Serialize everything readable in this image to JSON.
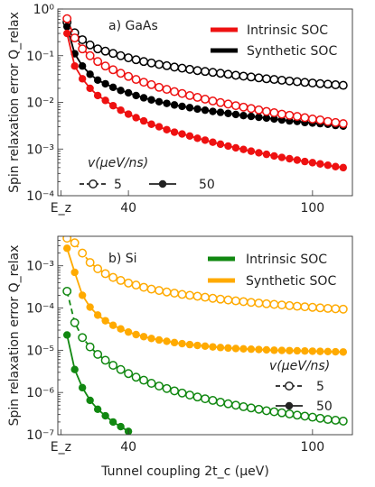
{
  "xlabel": "Tunnel coupling 2t_c (μeV)",
  "chart_data": [
    {
      "type": "line",
      "panel_label": "a) GaAs",
      "ylabel": "Spin relaxation error Q_relax",
      "y_scale": "log",
      "ylim": [
        0.0001,
        1
      ],
      "xlim": [
        17,
        113
      ],
      "x_ticks": [
        "E_z",
        "40",
        "100"
      ],
      "x_tick_values": [
        18,
        40,
        100
      ],
      "y_ticks": [
        "10⁻⁴",
        "10⁻³",
        "10⁻²",
        "10⁻¹",
        "10⁰"
      ],
      "y_tick_values": [
        0.0001,
        0.001,
        0.01,
        0.1,
        1
      ],
      "legend_series": [
        {
          "name": "Intrinsic SOC",
          "color": "#ee1111"
        },
        {
          "name": "Synthetic SOC",
          "color": "#000000"
        }
      ],
      "legend_speed": {
        "title": "v(μeV/ns)",
        "items": [
          "5",
          "50"
        ]
      },
      "x": [
        20,
        22.5,
        25,
        27.5,
        30,
        32.5,
        35,
        37.5,
        40,
        42.5,
        45,
        47.5,
        50,
        52.5,
        55,
        57.5,
        60,
        62.5,
        65,
        67.5,
        70,
        72.5,
        75,
        77.5,
        80,
        82.5,
        85,
        87.5,
        90,
        92.5,
        95,
        97.5,
        100,
        102.5,
        105,
        107.5,
        110
      ],
      "series": [
        {
          "color": "#000000",
          "speed": "5",
          "y": [
            0.52,
            0.31,
            0.22,
            0.17,
            0.14,
            0.125,
            0.112,
            0.1,
            0.09,
            0.082,
            0.075,
            0.07,
            0.065,
            0.061,
            0.057,
            0.054,
            0.051,
            0.048,
            0.046,
            0.044,
            0.042,
            0.04,
            0.038,
            0.0365,
            0.035,
            0.0335,
            0.032,
            0.031,
            0.0298,
            0.0287,
            0.0277,
            0.0268,
            0.026,
            0.0252,
            0.0245,
            0.0238,
            0.0232
          ]
        },
        {
          "color": "#000000",
          "speed": "50",
          "y": [
            0.42,
            0.11,
            0.06,
            0.04,
            0.03,
            0.025,
            0.021,
            0.018,
            0.016,
            0.014,
            0.0125,
            0.0113,
            0.0103,
            0.0095,
            0.0088,
            0.0082,
            0.0077,
            0.0072,
            0.0068,
            0.0064,
            0.0061,
            0.0058,
            0.0055,
            0.0052,
            0.005,
            0.0048,
            0.0046,
            0.0044,
            0.0042,
            0.004,
            0.0039,
            0.0037,
            0.0036,
            0.0035,
            0.0034,
            0.0032,
            0.0031
          ]
        },
        {
          "color": "#ee1111",
          "speed": "5",
          "y": [
            0.62,
            0.24,
            0.14,
            0.1,
            0.075,
            0.06,
            0.05,
            0.042,
            0.036,
            0.031,
            0.027,
            0.024,
            0.021,
            0.019,
            0.017,
            0.0155,
            0.014,
            0.0128,
            0.0117,
            0.0107,
            0.0099,
            0.0092,
            0.0085,
            0.0079,
            0.0074,
            0.0069,
            0.0064,
            0.006,
            0.0056,
            0.0053,
            0.005,
            0.0047,
            0.0044,
            0.0042,
            0.0039,
            0.0037,
            0.0035
          ]
        },
        {
          "color": "#ee1111",
          "speed": "50",
          "y": [
            0.3,
            0.06,
            0.032,
            0.02,
            0.014,
            0.011,
            0.0085,
            0.0068,
            0.0056,
            0.0047,
            0.004,
            0.0034,
            0.003,
            0.0026,
            0.0023,
            0.0021,
            0.0019,
            0.0017,
            0.00155,
            0.0014,
            0.00127,
            0.00116,
            0.00106,
            0.00098,
            0.0009,
            0.00083,
            0.00077,
            0.00071,
            0.00066,
            0.00062,
            0.00058,
            0.00054,
            0.00051,
            0.00048,
            0.00045,
            0.00042,
            0.0004
          ]
        }
      ]
    },
    {
      "type": "line",
      "panel_label": "b) Si",
      "ylabel": "Spin relaxation error Q_relax",
      "y_scale": "log",
      "ylim": [
        1e-07,
        0.005
      ],
      "xlim": [
        17,
        113
      ],
      "x_ticks": [
        "E_z",
        "40",
        "100"
      ],
      "x_tick_values": [
        18,
        40,
        100
      ],
      "y_ticks": [
        "10⁻⁷",
        "10⁻⁶",
        "10⁻⁵",
        "10⁻⁴",
        "10⁻³"
      ],
      "y_tick_values": [
        1e-07,
        1e-06,
        1e-05,
        0.0001,
        0.001
      ],
      "legend_series": [
        {
          "name": "Intrinsic SOC",
          "color": "#118811"
        },
        {
          "name": "Synthetic SOC",
          "color": "#ffaa00"
        }
      ],
      "legend_speed": {
        "title": "v(μeV/ns)",
        "items": [
          "5",
          "50"
        ]
      },
      "x": [
        20,
        22.5,
        25,
        27.5,
        30,
        32.5,
        35,
        37.5,
        40,
        42.5,
        45,
        47.5,
        50,
        52.5,
        55,
        57.5,
        60,
        62.5,
        65,
        67.5,
        70,
        72.5,
        75,
        77.5,
        80,
        82.5,
        85,
        87.5,
        90,
        92.5,
        95,
        97.5,
        100,
        102.5,
        105,
        107.5,
        110
      ],
      "series": [
        {
          "color": "#ffaa00",
          "speed": "5",
          "y": [
            0.0045,
            0.0035,
            0.002,
            0.0012,
            0.00085,
            0.00065,
            0.00053,
            0.00045,
            0.00039,
            0.00035,
            0.00031,
            0.00028,
            0.00026,
            0.00024,
            0.000225,
            0.00021,
            0.0002,
            0.00019,
            0.00018,
            0.00017,
            0.000162,
            0.000155,
            0.000148,
            0.000142,
            0.000136,
            0.000131,
            0.000126,
            0.000122,
            0.000118,
            0.000114,
            0.00011,
            0.000107,
            0.000104,
            0.000101,
            9.8e-05,
            9.6e-05,
            9.4e-05
          ]
        },
        {
          "color": "#ffaa00",
          "speed": "50",
          "y": [
            0.0026,
            0.0007,
            0.0002,
            0.000105,
            6.8e-05,
            5e-05,
            3.9e-05,
            3.2e-05,
            2.7e-05,
            2.35e-05,
            2.1e-05,
            1.9e-05,
            1.75e-05,
            1.63e-05,
            1.52e-05,
            1.43e-05,
            1.36e-05,
            1.3e-05,
            1.25e-05,
            1.2e-05,
            1.16e-05,
            1.13e-05,
            1.1e-05,
            1.08e-05,
            1.06e-05,
            1.04e-05,
            1.02e-05,
            1e-05,
            9.9e-06,
            9.8e-06,
            9.7e-06,
            9.6e-06,
            9.5e-06,
            9.4e-06,
            9.3e-06,
            9.2e-06,
            9.1e-06
          ]
        },
        {
          "color": "#118811",
          "speed": "5",
          "y": [
            0.00025,
            4.5e-05,
            2e-05,
            1.2e-05,
            8e-06,
            5.8e-06,
            4.4e-06,
            3.5e-06,
            2.8e-06,
            2.3e-06,
            1.95e-06,
            1.65e-06,
            1.42e-06,
            1.24e-06,
            1.09e-06,
            9.7e-07,
            8.7e-07,
            7.8e-07,
            7.1e-07,
            6.5e-07,
            5.9e-07,
            5.4e-07,
            5e-07,
            4.6e-07,
            4.3e-07,
            4e-07,
            3.7e-07,
            3.5e-07,
            3.3e-07,
            3.1e-07,
            2.9e-07,
            2.75e-07,
            2.6e-07,
            2.45e-07,
            2.3e-07,
            2.2e-07,
            2.1e-07
          ]
        },
        {
          "color": "#118811",
          "speed": "50",
          "y": [
            2.3e-05,
            3.5e-06,
            1.3e-06,
            6.5e-07,
            4e-07,
            2.8e-07,
            2e-07,
            1.55e-07,
            1.2e-07,
            null,
            null,
            null,
            null,
            null,
            null,
            null,
            null,
            null,
            null,
            null,
            null,
            null,
            null,
            null,
            null,
            null,
            null,
            null,
            null,
            null,
            null,
            null,
            null,
            null,
            null,
            null,
            null
          ]
        }
      ]
    }
  ]
}
